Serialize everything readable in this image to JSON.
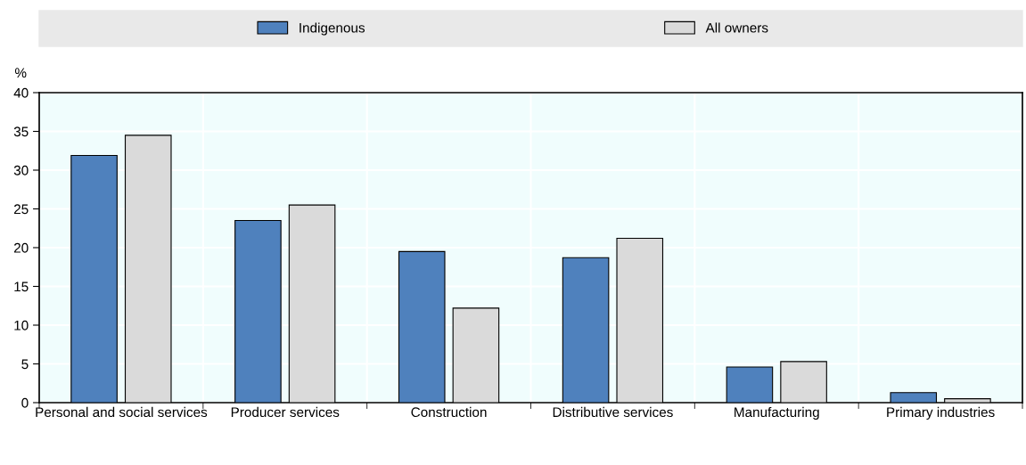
{
  "chart_data": {
    "type": "bar",
    "ylabel": "%",
    "categories": [
      "Personal and social services",
      "Producer services",
      "Construction",
      "Distributive services",
      "Manufacturing",
      "Primary industries"
    ],
    "series": [
      {
        "name": "Indigenous",
        "color": "#4f81bd",
        "values": [
          31.9,
          23.5,
          19.5,
          18.7,
          4.6,
          1.3
        ]
      },
      {
        "name": "All owners",
        "color": "#dadada",
        "values": [
          34.5,
          25.5,
          12.2,
          21.2,
          5.3,
          0.5
        ]
      }
    ],
    "ylim": [
      0,
      40
    ],
    "yticks": [
      0,
      5,
      10,
      15,
      20,
      25,
      30,
      35,
      40
    ],
    "grid": true,
    "legend": "top"
  }
}
